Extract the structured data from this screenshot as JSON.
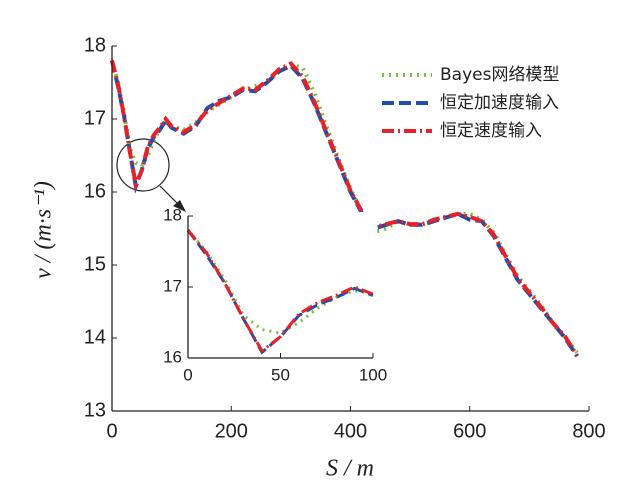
{
  "chart_data": [
    {
      "type": "line",
      "x_label": "S / m",
      "y_label": "v / (m·s⁻¹)",
      "legend": "upper right",
      "x": [
        0,
        10,
        20,
        30,
        40,
        50,
        60,
        70,
        80,
        90,
        100,
        120,
        140,
        160,
        180,
        200,
        220,
        240,
        260,
        280,
        300,
        320,
        340,
        360,
        380,
        400,
        420,
        440,
        460,
        480,
        500,
        520,
        540,
        560,
        580,
        600,
        620,
        640,
        660,
        680,
        700,
        720,
        740,
        760,
        780
      ],
      "series": [
        {
          "name": "Bayes网络模型",
          "color": "#77c043",
          "style": "dotted",
          "values": [
            17.8,
            17.5,
            17.1,
            16.6,
            16.4,
            16.35,
            16.5,
            16.7,
            16.85,
            16.95,
            16.9,
            16.85,
            16.95,
            17.1,
            17.2,
            17.3,
            17.4,
            17.45,
            17.5,
            17.65,
            17.75,
            17.7,
            17.35,
            16.9,
            16.45,
            16.05,
            15.7,
            15.45,
            15.5,
            15.6,
            15.55,
            15.55,
            15.6,
            15.65,
            15.7,
            15.7,
            15.62,
            15.45,
            15.15,
            14.85,
            14.65,
            14.45,
            14.2,
            14.0,
            13.8
          ]
        },
        {
          "name": "恒定加速度输入",
          "color": "#1f4ea6",
          "style": "dashed",
          "values": [
            17.8,
            17.45,
            17.05,
            16.55,
            16.08,
            16.3,
            16.6,
            16.75,
            16.85,
            16.98,
            16.88,
            16.8,
            16.9,
            17.15,
            17.25,
            17.3,
            17.4,
            17.38,
            17.5,
            17.65,
            17.73,
            17.55,
            17.2,
            16.8,
            16.4,
            16.0,
            15.7,
            15.5,
            15.55,
            15.6,
            15.55,
            15.55,
            15.6,
            15.65,
            15.7,
            15.62,
            15.6,
            15.4,
            15.1,
            14.8,
            14.6,
            14.4,
            14.2,
            14.0,
            13.75
          ]
        },
        {
          "name": "恒定速度输入",
          "color": "#e8202a",
          "style": "dashdot",
          "values": [
            17.8,
            17.48,
            17.05,
            16.55,
            16.1,
            16.3,
            16.62,
            16.78,
            16.88,
            17.0,
            16.9,
            16.82,
            16.92,
            17.12,
            17.22,
            17.32,
            17.42,
            17.4,
            17.52,
            17.68,
            17.76,
            17.58,
            17.22,
            16.82,
            16.42,
            16.02,
            15.72,
            15.52,
            15.56,
            15.6,
            15.56,
            15.56,
            15.62,
            15.66,
            15.7,
            15.66,
            15.6,
            15.42,
            15.12,
            14.82,
            14.62,
            14.42,
            14.2,
            14.02,
            13.76
          ]
        }
      ],
      "xlim": [
        0,
        800
      ],
      "ylim": [
        13,
        18
      ],
      "xticks": [
        0,
        200,
        400,
        600,
        800
      ],
      "yticks": [
        13,
        14,
        15,
        16,
        17,
        18
      ]
    },
    {
      "type": "line",
      "x": [
        0,
        10,
        20,
        30,
        40,
        50,
        60,
        70,
        80,
        90,
        100
      ],
      "series": [
        {
          "color": "#77c043",
          "style": "dotted",
          "values": [
            17.8,
            17.5,
            17.1,
            16.6,
            16.4,
            16.35,
            16.5,
            16.7,
            16.85,
            16.95,
            16.9
          ]
        },
        {
          "color": "#1f4ea6",
          "style": "dashed",
          "values": [
            17.8,
            17.45,
            17.05,
            16.55,
            16.08,
            16.3,
            16.6,
            16.75,
            16.85,
            16.98,
            16.88
          ]
        },
        {
          "color": "#e8202a",
          "style": "dashdot",
          "values": [
            17.8,
            17.48,
            17.05,
            16.55,
            16.1,
            16.3,
            16.62,
            16.78,
            16.88,
            17.0,
            16.9
          ]
        }
      ],
      "xlim": [
        0,
        100
      ],
      "ylim": [
        16,
        18
      ],
      "xticks": [
        0,
        50,
        100
      ],
      "yticks": [
        16,
        17,
        18
      ]
    }
  ]
}
